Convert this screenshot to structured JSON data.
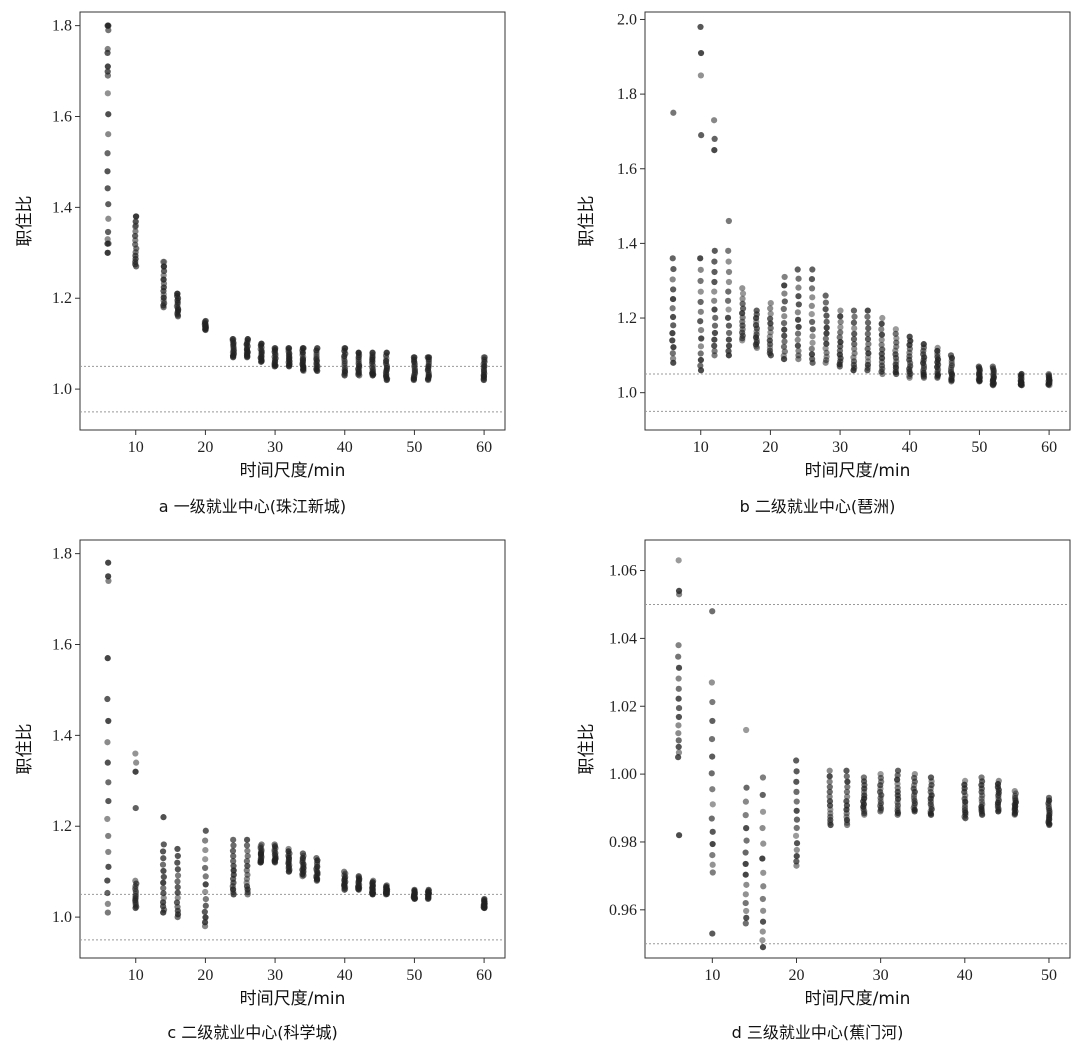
{
  "chart_data": [
    {
      "type": "scatter",
      "caption": "a 一级就业中心(珠江新城)",
      "xlabel": "时间尺度/min",
      "ylabel": "职住比",
      "xlim": [
        2,
        63
      ],
      "ylim": [
        0.91,
        1.83
      ],
      "xticks": [
        10,
        20,
        30,
        40,
        50,
        60
      ],
      "yticks": [
        1.0,
        1.2,
        1.4,
        1.6,
        1.8
      ],
      "ytick_labels": [
        "1.0",
        "1.2",
        "1.4",
        "1.6",
        "1.8"
      ],
      "reference_lines": [
        0.95,
        1.05
      ],
      "columns": [
        {
          "x": 6,
          "min": 1.3,
          "max": 1.8,
          "outliers": [
            1.3,
            1.32,
            1.33,
            1.69,
            1.71,
            1.74,
            1.79,
            1.8
          ]
        },
        {
          "x": 10,
          "min": 1.27,
          "max": 1.38,
          "outliers": [
            1.38,
            1.36
          ]
        },
        {
          "x": 14,
          "min": 1.18,
          "max": 1.28,
          "outliers": [
            1.28,
            1.27
          ]
        },
        {
          "x": 16,
          "min": 1.16,
          "max": 1.21,
          "outliers": [
            1.21
          ]
        },
        {
          "x": 20,
          "min": 1.13,
          "max": 1.15,
          "outliers": []
        },
        {
          "x": 24,
          "min": 1.07,
          "max": 1.11,
          "outliers": [
            1.11
          ]
        },
        {
          "x": 26,
          "min": 1.07,
          "max": 1.11,
          "outliers": [
            1.11
          ]
        },
        {
          "x": 28,
          "min": 1.06,
          "max": 1.1,
          "outliers": [
            1.1
          ]
        },
        {
          "x": 30,
          "min": 1.05,
          "max": 1.09,
          "outliers": [
            1.09
          ]
        },
        {
          "x": 32,
          "min": 1.05,
          "max": 1.09,
          "outliers": [
            1.09
          ]
        },
        {
          "x": 34,
          "min": 1.04,
          "max": 1.09,
          "outliers": [
            1.09
          ]
        },
        {
          "x": 36,
          "min": 1.04,
          "max": 1.09,
          "outliers": [
            1.09
          ]
        },
        {
          "x": 40,
          "min": 1.03,
          "max": 1.09,
          "outliers": [
            1.09
          ]
        },
        {
          "x": 42,
          "min": 1.03,
          "max": 1.08,
          "outliers": [
            1.08
          ]
        },
        {
          "x": 44,
          "min": 1.03,
          "max": 1.08,
          "outliers": [
            1.08
          ]
        },
        {
          "x": 46,
          "min": 1.02,
          "max": 1.08,
          "outliers": [
            1.08
          ]
        },
        {
          "x": 50,
          "min": 1.02,
          "max": 1.07,
          "outliers": [
            1.07
          ]
        },
        {
          "x": 52,
          "min": 1.02,
          "max": 1.07,
          "outliers": [
            1.07
          ]
        },
        {
          "x": 60,
          "min": 1.02,
          "max": 1.07,
          "outliers": [
            1.07
          ]
        }
      ]
    },
    {
      "type": "scatter",
      "caption": "b 二级就业中心(琶洲)",
      "xlabel": "时间尺度/min",
      "ylabel": "职住比",
      "xlim": [
        2,
        63
      ],
      "ylim": [
        0.9,
        2.02
      ],
      "xticks": [
        10,
        20,
        30,
        40,
        50,
        60
      ],
      "yticks": [
        1.0,
        1.2,
        1.4,
        1.6,
        1.8,
        2.0
      ],
      "ytick_labels": [
        "1.0",
        "1.2",
        "1.4",
        "1.6",
        "1.8",
        "2.0"
      ],
      "reference_lines": [
        0.95,
        1.05
      ],
      "columns": [
        {
          "x": 6,
          "min": 1.08,
          "max": 1.36,
          "outliers": [
            1.75
          ]
        },
        {
          "x": 10,
          "min": 1.06,
          "max": 1.36,
          "outliers": [
            1.69,
            1.85,
            1.91,
            1.98
          ]
        },
        {
          "x": 12,
          "min": 1.1,
          "max": 1.38,
          "outliers": [
            1.65,
            1.68,
            1.73
          ]
        },
        {
          "x": 14,
          "min": 1.1,
          "max": 1.38,
          "outliers": [
            1.46
          ]
        },
        {
          "x": 16,
          "min": 1.14,
          "max": 1.28,
          "outliers": []
        },
        {
          "x": 18,
          "min": 1.12,
          "max": 1.22,
          "outliers": []
        },
        {
          "x": 20,
          "min": 1.1,
          "max": 1.24,
          "outliers": []
        },
        {
          "x": 22,
          "min": 1.09,
          "max": 1.31,
          "outliers": []
        },
        {
          "x": 24,
          "min": 1.09,
          "max": 1.33,
          "outliers": []
        },
        {
          "x": 26,
          "min": 1.08,
          "max": 1.33,
          "outliers": []
        },
        {
          "x": 28,
          "min": 1.08,
          "max": 1.26,
          "outliers": []
        },
        {
          "x": 30,
          "min": 1.07,
          "max": 1.22,
          "outliers": []
        },
        {
          "x": 32,
          "min": 1.06,
          "max": 1.22,
          "outliers": []
        },
        {
          "x": 34,
          "min": 1.06,
          "max": 1.22,
          "outliers": []
        },
        {
          "x": 36,
          "min": 1.05,
          "max": 1.2,
          "outliers": []
        },
        {
          "x": 38,
          "min": 1.05,
          "max": 1.17,
          "outliers": []
        },
        {
          "x": 40,
          "min": 1.04,
          "max": 1.15,
          "outliers": []
        },
        {
          "x": 42,
          "min": 1.04,
          "max": 1.13,
          "outliers": []
        },
        {
          "x": 44,
          "min": 1.04,
          "max": 1.12,
          "outliers": []
        },
        {
          "x": 46,
          "min": 1.03,
          "max": 1.1,
          "outliers": []
        },
        {
          "x": 50,
          "min": 1.03,
          "max": 1.07,
          "outliers": []
        },
        {
          "x": 52,
          "min": 1.02,
          "max": 1.07,
          "outliers": []
        },
        {
          "x": 56,
          "min": 1.02,
          "max": 1.05,
          "outliers": []
        },
        {
          "x": 60,
          "min": 1.02,
          "max": 1.05,
          "outliers": []
        }
      ]
    },
    {
      "type": "scatter",
      "caption": "c 二级就业中心(科学城)",
      "xlabel": "时间尺度/min",
      "ylabel": "职住比",
      "xlim": [
        2,
        63
      ],
      "ylim": [
        0.91,
        1.83
      ],
      "xticks": [
        10,
        20,
        30,
        40,
        50,
        60
      ],
      "yticks": [
        1.0,
        1.2,
        1.4,
        1.6,
        1.8
      ],
      "ytick_labels": [
        "1.0",
        "1.2",
        "1.4",
        "1.6",
        "1.8"
      ],
      "reference_lines": [
        0.95,
        1.05
      ],
      "columns": [
        {
          "x": 6,
          "min": 1.01,
          "max": 1.48,
          "outliers": [
            1.57,
            1.74,
            1.75,
            1.78
          ]
        },
        {
          "x": 10,
          "min": 1.02,
          "max": 1.08,
          "outliers": [
            1.24,
            1.32,
            1.34,
            1.36
          ]
        },
        {
          "x": 14,
          "min": 1.01,
          "max": 1.16,
          "outliers": [
            1.22
          ]
        },
        {
          "x": 16,
          "min": 1.0,
          "max": 1.15,
          "outliers": []
        },
        {
          "x": 20,
          "min": 0.98,
          "max": 1.19,
          "outliers": []
        },
        {
          "x": 24,
          "min": 1.05,
          "max": 1.17,
          "outliers": []
        },
        {
          "x": 26,
          "min": 1.05,
          "max": 1.17,
          "outliers": []
        },
        {
          "x": 28,
          "min": 1.12,
          "max": 1.16,
          "outliers": []
        },
        {
          "x": 30,
          "min": 1.12,
          "max": 1.16,
          "outliers": []
        },
        {
          "x": 32,
          "min": 1.1,
          "max": 1.15,
          "outliers": []
        },
        {
          "x": 34,
          "min": 1.09,
          "max": 1.14,
          "outliers": []
        },
        {
          "x": 36,
          "min": 1.08,
          "max": 1.13,
          "outliers": []
        },
        {
          "x": 40,
          "min": 1.06,
          "max": 1.1,
          "outliers": []
        },
        {
          "x": 42,
          "min": 1.06,
          "max": 1.09,
          "outliers": []
        },
        {
          "x": 44,
          "min": 1.05,
          "max": 1.08,
          "outliers": []
        },
        {
          "x": 46,
          "min": 1.05,
          "max": 1.07,
          "outliers": []
        },
        {
          "x": 50,
          "min": 1.04,
          "max": 1.06,
          "outliers": []
        },
        {
          "x": 52,
          "min": 1.04,
          "max": 1.06,
          "outliers": []
        },
        {
          "x": 60,
          "min": 1.02,
          "max": 1.04,
          "outliers": []
        }
      ]
    },
    {
      "type": "scatter",
      "caption": "d 三级就业中心(蕉门河)",
      "xlabel": "时间尺度/min",
      "ylabel": "职住比",
      "xlim": [
        2,
        52.5
      ],
      "ylim": [
        0.9458,
        1.069
      ],
      "xticks": [
        10,
        20,
        30,
        40,
        50
      ],
      "yticks": [
        0.96,
        0.98,
        1.0,
        1.02,
        1.04,
        1.06
      ],
      "ytick_labels": [
        "0.96",
        "0.98",
        "1.00",
        "1.02",
        "1.04",
        "1.06"
      ],
      "reference_lines": [
        0.95,
        1.05
      ],
      "columns": [
        {
          "x": 6,
          "min": 1.005,
          "max": 1.038,
          "outliers": [
            0.982,
            1.053,
            1.054,
            1.063
          ]
        },
        {
          "x": 10,
          "min": 0.971,
          "max": 1.027,
          "outliers": [
            0.953,
            1.048
          ]
        },
        {
          "x": 14,
          "min": 0.956,
          "max": 0.996,
          "outliers": [
            1.013
          ]
        },
        {
          "x": 16,
          "min": 0.949,
          "max": 0.999,
          "outliers": []
        },
        {
          "x": 20,
          "min": 0.973,
          "max": 1.004,
          "outliers": []
        },
        {
          "x": 24,
          "min": 0.985,
          "max": 1.001,
          "outliers": []
        },
        {
          "x": 26,
          "min": 0.985,
          "max": 1.001,
          "outliers": []
        },
        {
          "x": 28,
          "min": 0.988,
          "max": 0.999,
          "outliers": []
        },
        {
          "x": 30,
          "min": 0.989,
          "max": 1.0,
          "outliers": []
        },
        {
          "x": 32,
          "min": 0.988,
          "max": 1.001,
          "outliers": []
        },
        {
          "x": 34,
          "min": 0.989,
          "max": 1.0,
          "outliers": []
        },
        {
          "x": 36,
          "min": 0.988,
          "max": 0.999,
          "outliers": []
        },
        {
          "x": 40,
          "min": 0.987,
          "max": 0.998,
          "outliers": []
        },
        {
          "x": 42,
          "min": 0.988,
          "max": 0.999,
          "outliers": []
        },
        {
          "x": 44,
          "min": 0.989,
          "max": 0.998,
          "outliers": []
        },
        {
          "x": 46,
          "min": 0.988,
          "max": 0.995,
          "outliers": []
        },
        {
          "x": 50,
          "min": 0.985,
          "max": 0.993,
          "outliers": []
        }
      ]
    }
  ]
}
